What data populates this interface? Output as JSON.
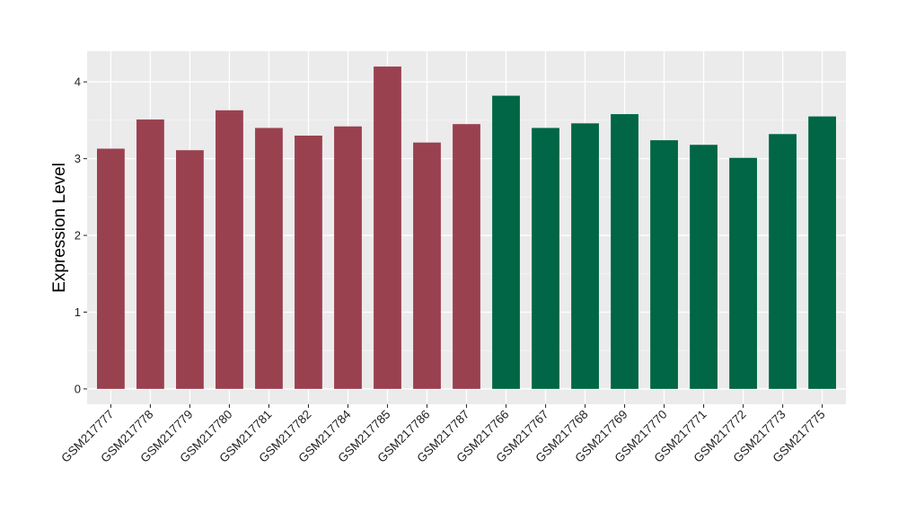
{
  "chart_data": {
    "type": "bar",
    "ylabel": "Expression Level",
    "xlabel": "",
    "ylim": [
      -0.2,
      4.4
    ],
    "yticks": [
      0,
      1,
      2,
      3,
      4
    ],
    "grid": true,
    "background": "#EBEBEB",
    "categories": [
      "GSM217777",
      "GSM217778",
      "GSM217779",
      "GSM217780",
      "GSM217781",
      "GSM217782",
      "GSM217784",
      "GSM217785",
      "GSM217786",
      "GSM217787",
      "GSM217766",
      "GSM217767",
      "GSM217768",
      "GSM217769",
      "GSM217770",
      "GSM217771",
      "GSM217772",
      "GSM217773",
      "GSM217775"
    ],
    "values": [
      3.13,
      3.51,
      3.11,
      3.63,
      3.4,
      3.3,
      3.42,
      4.2,
      3.21,
      3.45,
      3.82,
      3.4,
      3.46,
      3.58,
      3.24,
      3.18,
      3.01,
      3.32,
      3.55
    ],
    "groups": [
      0,
      0,
      0,
      0,
      0,
      0,
      0,
      0,
      0,
      0,
      1,
      1,
      1,
      1,
      1,
      1,
      1,
      1,
      1
    ],
    "group_colors": [
      "#9A4150",
      "#006645"
    ]
  }
}
